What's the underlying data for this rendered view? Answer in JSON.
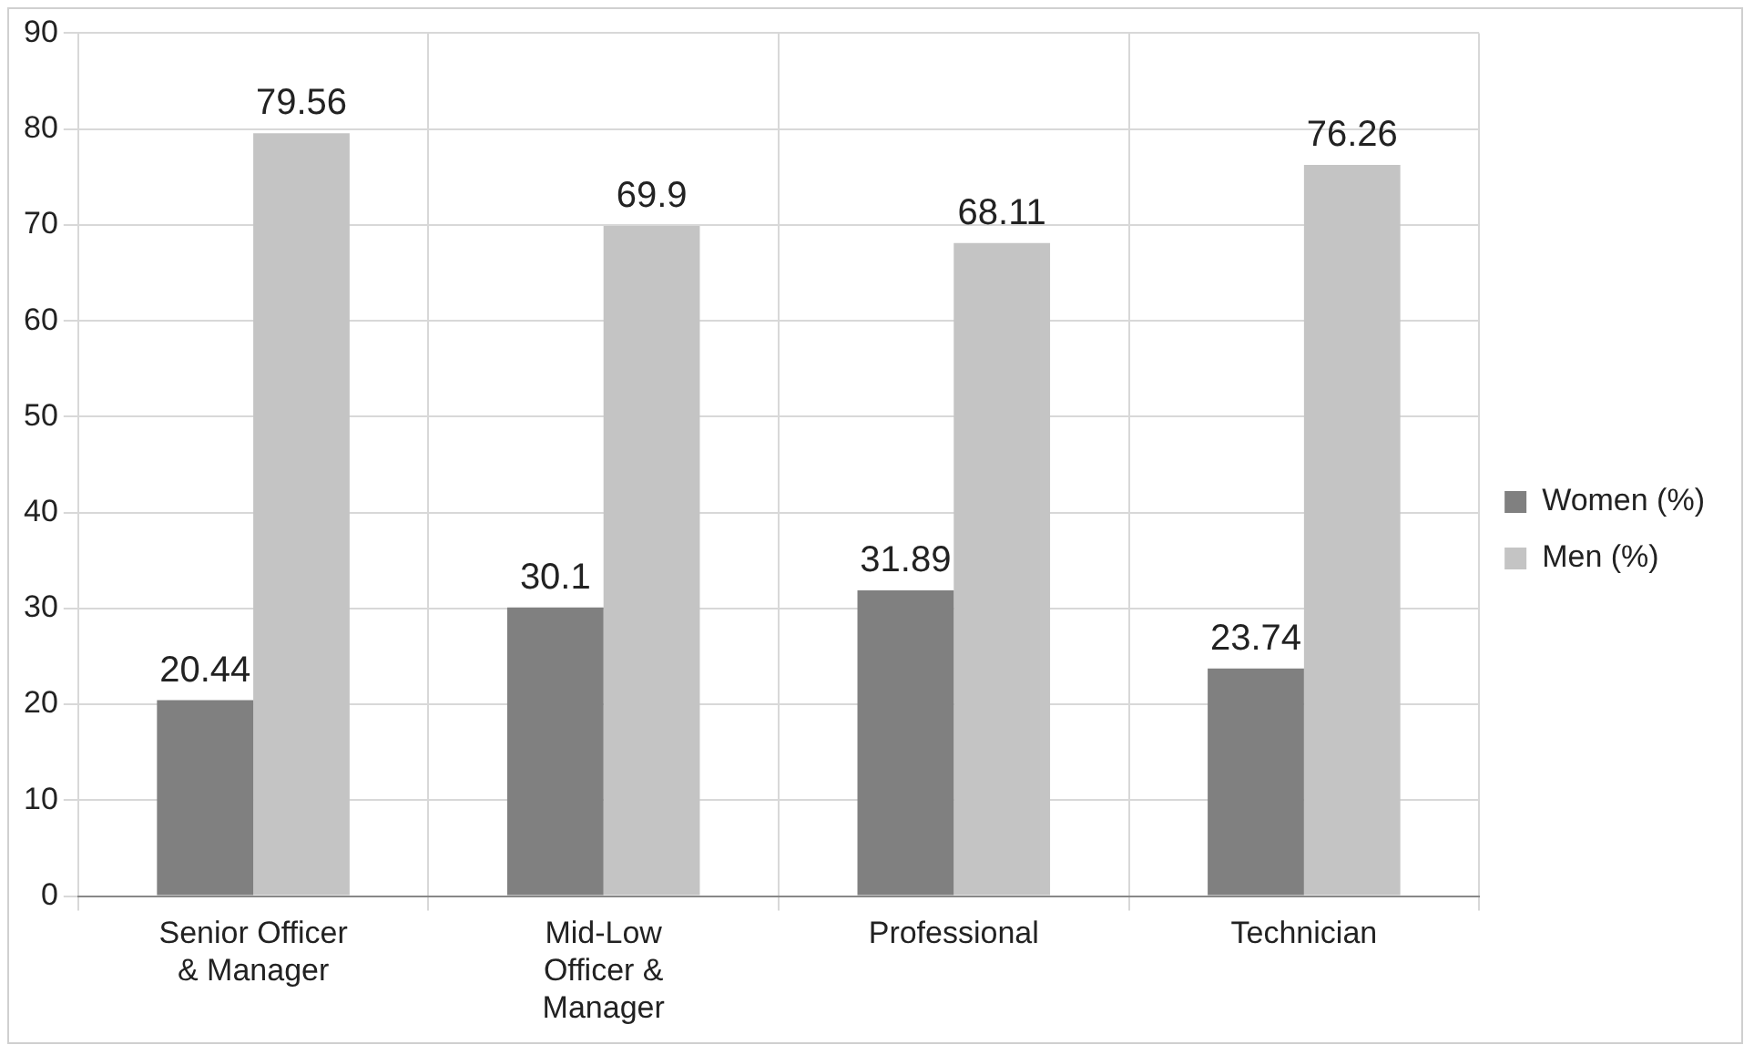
{
  "chart_data": {
    "type": "bar",
    "categories": [
      "Senior Officer & Manager",
      "Mid-Low Officer & Manager",
      "Professional",
      "Technician"
    ],
    "series": [
      {
        "name": "Women (%)",
        "color": "#808080",
        "values": [
          20.44,
          30.1,
          31.89,
          23.74
        ]
      },
      {
        "name": "Men (%)",
        "color": "#c4c4c4",
        "values": [
          79.56,
          69.9,
          68.11,
          76.26
        ]
      }
    ],
    "ylim": [
      0,
      90
    ],
    "yticks": [
      0,
      10,
      20,
      30,
      40,
      50,
      60,
      70,
      80,
      90
    ],
    "grid": true,
    "legend": "right",
    "data_labels": true
  }
}
